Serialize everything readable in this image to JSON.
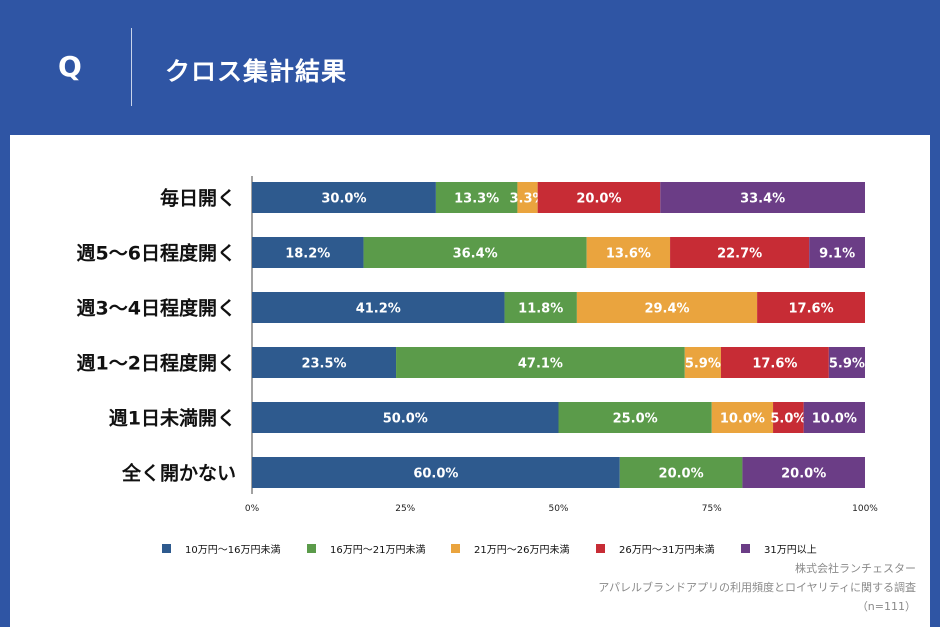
{
  "header": {
    "q_label": "Q",
    "title": "クロス集計結果"
  },
  "colors": {
    "background": "#2f55a4",
    "series": [
      "#2e5a8e",
      "#5b9b4a",
      "#eaa43e",
      "#c72c35",
      "#6b3d86"
    ]
  },
  "chart_data": {
    "type": "bar",
    "orientation": "horizontal",
    "stacked": true,
    "percent_stacked": true,
    "categories": [
      "毎日開く",
      "週5〜6日程度開く",
      "週3〜4日程度開く",
      "週1〜2日程度開く",
      "週1日未満開く",
      "全く開かない"
    ],
    "series": [
      {
        "name": "10万円〜16万円未満",
        "values": [
          30.0,
          18.2,
          41.2,
          23.5,
          50.0,
          60.0
        ]
      },
      {
        "name": "16万円〜21万円未満",
        "values": [
          13.3,
          36.4,
          11.8,
          47.1,
          25.0,
          20.0
        ]
      },
      {
        "name": "21万円〜26万円未満",
        "values": [
          3.3,
          13.6,
          29.4,
          5.9,
          10.0,
          0
        ]
      },
      {
        "name": "26万円〜31万円未満",
        "values": [
          20.0,
          22.7,
          17.6,
          17.6,
          5.0,
          0
        ]
      },
      {
        "name": "31万円以上",
        "values": [
          33.4,
          9.1,
          0,
          5.9,
          10.0,
          20.0
        ]
      }
    ],
    "xlim": [
      0,
      100
    ],
    "xticks": [
      "0%",
      "25%",
      "50%",
      "75%",
      "100%"
    ],
    "legend_position": "bottom"
  },
  "footnote": {
    "company": "株式会社ランチェスター",
    "survey": "アパレルブランドアプリの利用頻度とロイヤリティに関する調査",
    "sample": "（n=111）"
  }
}
